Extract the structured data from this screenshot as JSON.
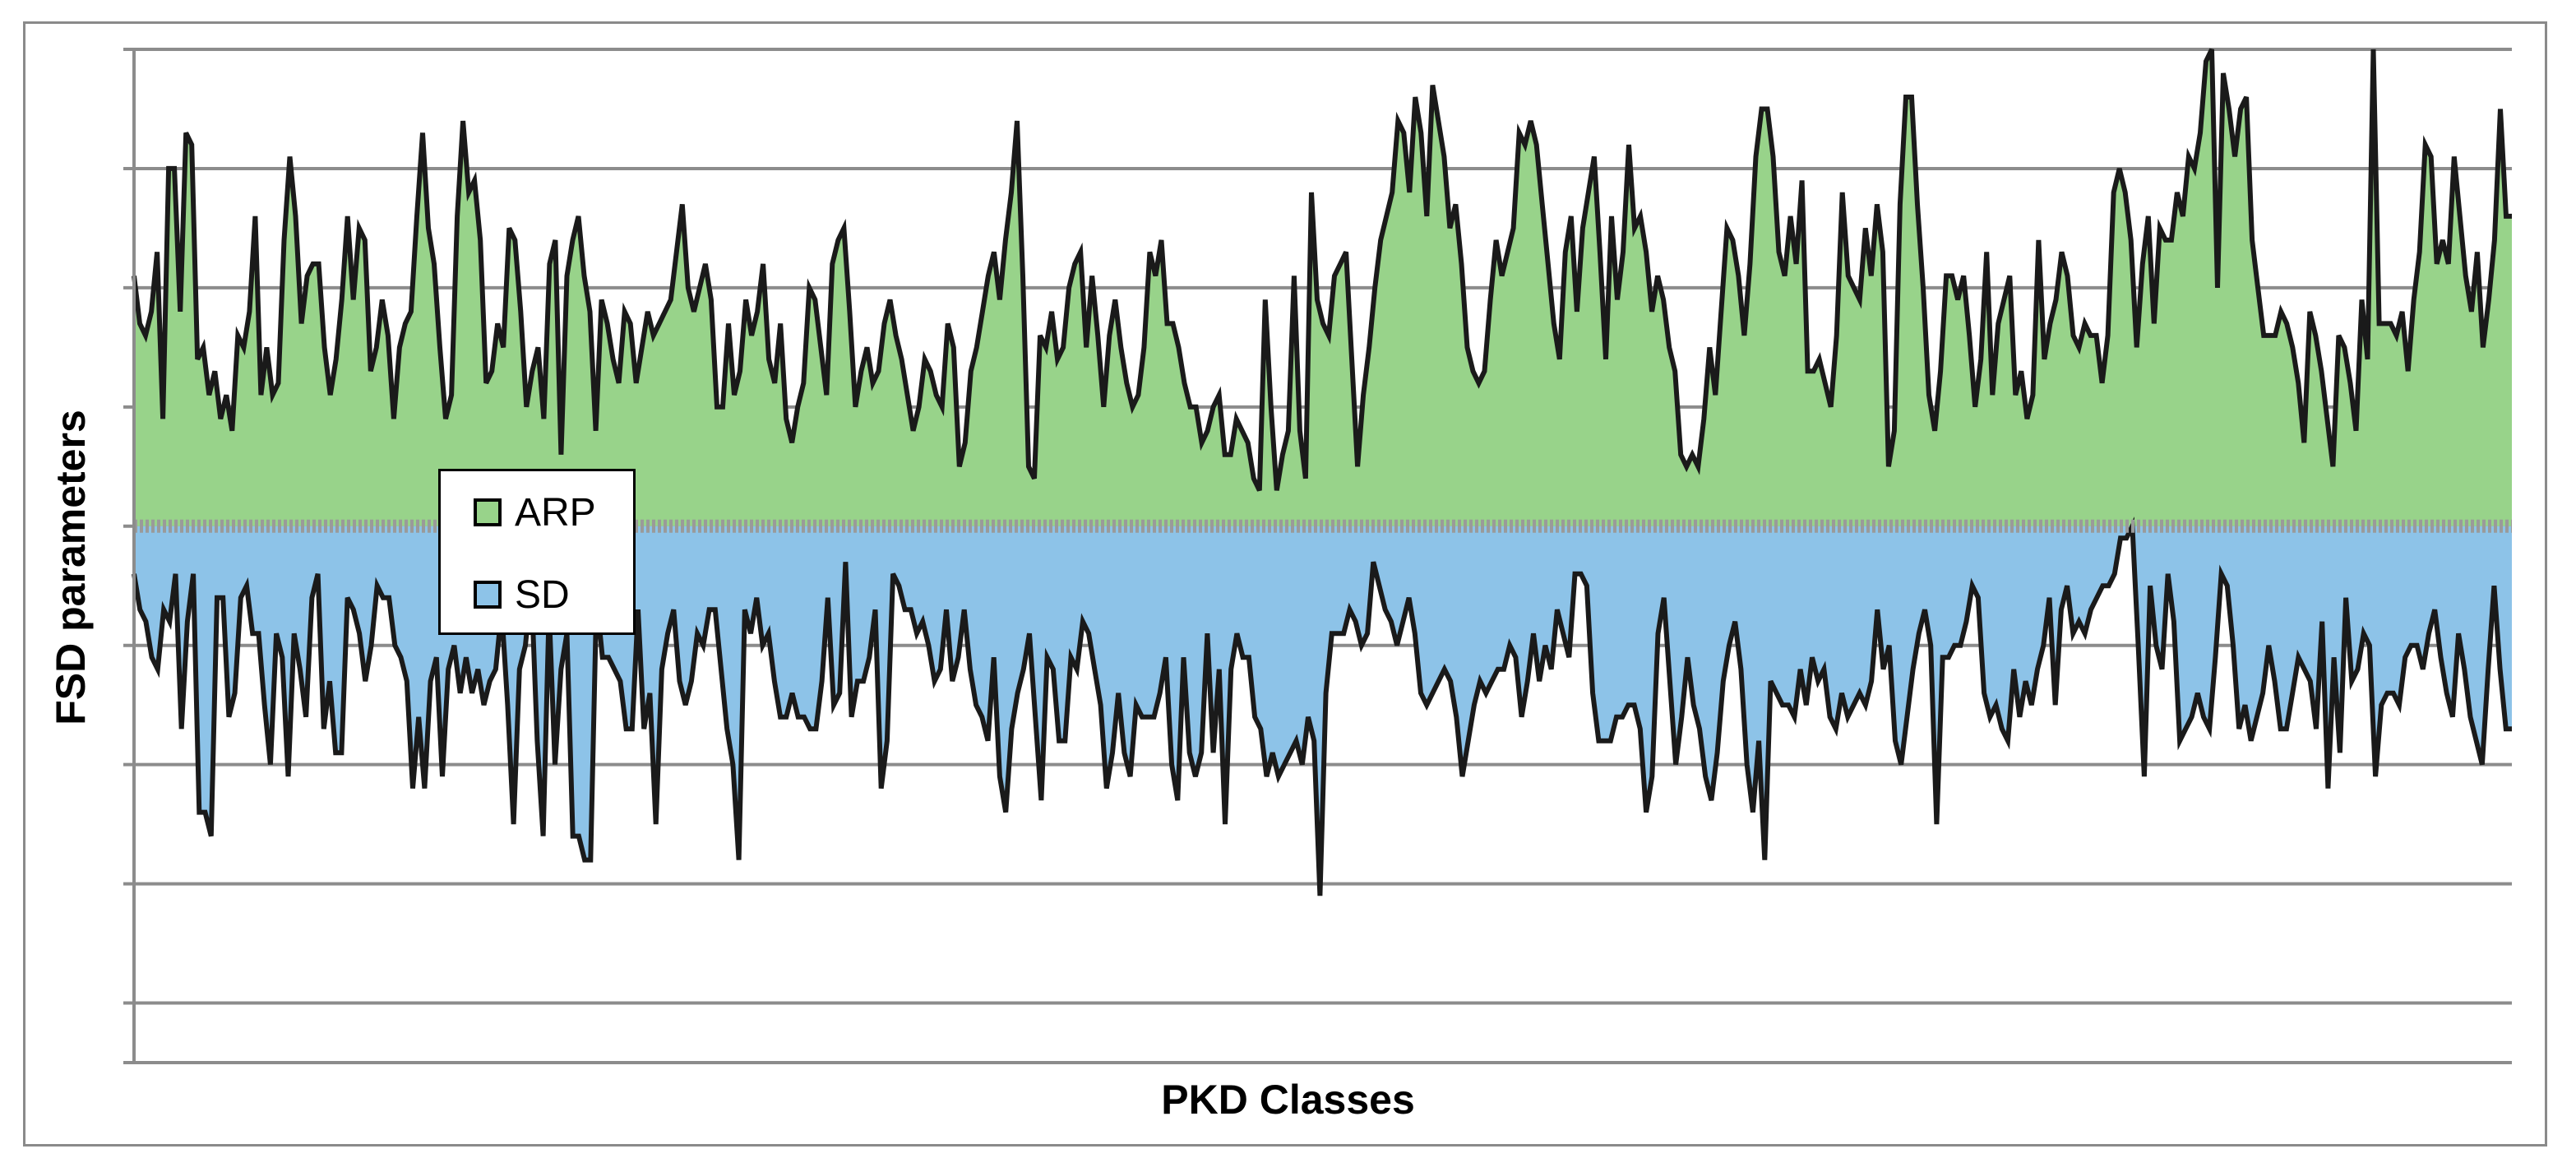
{
  "chart_data": {
    "type": "area",
    "xlabel": "PKD Classes",
    "ylabel": "FSD parameters",
    "x_tick_labels": [],
    "y_tick_labels": [],
    "legend": {
      "position": "left-center",
      "entries": [
        "ARP",
        "SD"
      ]
    },
    "grid": true,
    "ylim": [
      -4.5,
      4
    ],
    "baseline": 0,
    "series": [
      {
        "name": "ARP",
        "color": "#98d38a",
        "values": [
          2.1,
          1.7,
          1.6,
          1.8,
          2.3,
          0.9,
          3.0,
          3.0,
          1.8,
          3.3,
          3.2,
          1.4,
          1.5,
          1.1,
          1.3,
          0.9,
          1.1,
          0.8,
          1.6,
          1.5,
          1.8,
          2.6,
          1.1,
          1.5,
          1.1,
          1.2,
          2.4,
          3.1,
          2.6,
          1.7,
          2.1,
          2.2,
          2.2,
          1.5,
          1.1,
          1.4,
          1.9,
          2.6,
          1.9,
          2.5,
          2.4,
          1.3,
          1.5,
          1.9,
          1.6,
          0.9,
          1.5,
          1.7,
          1.8,
          2.6,
          3.3,
          2.5,
          2.2,
          1.5,
          0.9,
          1.1,
          2.6,
          3.4,
          2.8,
          2.9,
          2.4,
          1.2,
          1.3,
          1.7,
          1.5,
          2.5,
          2.4,
          1.8,
          1.0,
          1.3,
          1.5,
          0.9,
          2.2,
          2.4,
          0.6,
          2.1,
          2.4,
          2.6,
          2.1,
          1.8,
          0.8,
          1.9,
          1.7,
          1.4,
          1.2,
          1.8,
          1.7,
          1.2,
          1.5,
          1.8,
          1.6,
          1.7,
          1.8,
          1.9,
          2.3,
          2.7,
          2.0,
          1.8,
          2.0,
          2.2,
          1.9,
          1.0,
          1.0,
          1.7,
          1.1,
          1.3,
          1.9,
          1.6,
          1.8,
          2.2,
          1.4,
          1.2,
          1.7,
          0.9,
          0.7,
          1.0,
          1.2,
          2.0,
          1.9,
          1.5,
          1.1,
          2.2,
          2.4,
          2.5,
          1.8,
          1.0,
          1.3,
          1.5,
          1.2,
          1.3,
          1.7,
          1.9,
          1.6,
          1.4,
          1.1,
          0.8,
          1.0,
          1.4,
          1.3,
          1.1,
          1.0,
          1.7,
          1.5,
          0.5,
          0.7,
          1.3,
          1.5,
          1.8,
          2.1,
          2.3,
          1.9,
          2.4,
          2.8,
          3.4,
          2.1,
          0.5,
          0.4,
          1.6,
          1.5,
          1.8,
          1.4,
          1.5,
          2.0,
          2.2,
          2.3,
          1.5,
          2.1,
          1.6,
          1.0,
          1.6,
          1.9,
          1.5,
          1.2,
          1.0,
          1.1,
          1.5,
          2.3,
          2.1,
          2.4,
          1.7,
          1.7,
          1.5,
          1.2,
          1.0,
          1.0,
          0.7,
          0.8,
          1.0,
          1.1,
          0.6,
          0.6,
          0.9,
          0.8,
          0.7,
          0.4,
          0.3,
          1.9,
          1.0,
          0.3,
          0.6,
          0.8,
          2.1,
          0.8,
          0.4,
          2.8,
          1.9,
          1.7,
          1.6,
          2.1,
          2.2,
          2.3,
          1.4,
          0.5,
          1.1,
          1.5,
          2.0,
          2.4,
          2.6,
          2.8,
          3.4,
          3.3,
          2.8,
          3.6,
          3.3,
          2.6,
          3.7,
          3.4,
          3.1,
          2.5,
          2.7,
          2.2,
          1.5,
          1.3,
          1.2,
          1.3,
          1.9,
          2.4,
          2.1,
          2.3,
          2.5,
          3.3,
          3.2,
          3.4,
          3.2,
          2.7,
          2.2,
          1.7,
          1.4,
          2.3,
          2.6,
          1.8,
          2.5,
          2.8,
          3.1,
          2.3,
          1.4,
          2.6,
          1.9,
          2.3,
          3.2,
          2.5,
          2.6,
          2.3,
          1.8,
          2.1,
          1.9,
          1.5,
          1.3,
          0.6,
          0.5,
          0.6,
          0.5,
          0.9,
          1.5,
          1.1,
          1.8,
          2.5,
          2.4,
          2.1,
          1.6,
          2.2,
          3.1,
          3.5,
          3.5,
          3.1,
          2.3,
          2.1,
          2.6,
          2.2,
          2.9,
          1.3,
          1.3,
          1.4,
          1.2,
          1.0,
          1.6,
          2.8,
          2.1,
          2.0,
          1.9,
          2.5,
          2.1,
          2.7,
          2.3,
          0.5,
          0.8,
          2.7,
          3.6,
          3.6,
          2.7,
          2.0,
          1.1,
          0.8,
          1.3,
          2.1,
          2.1,
          1.9,
          2.1,
          1.6,
          1.0,
          1.4,
          2.3,
          1.1,
          1.7,
          1.9,
          2.1,
          1.1,
          1.3,
          0.9,
          1.1,
          2.4,
          1.4,
          1.7,
          1.9,
          2.3,
          2.1,
          1.6,
          1.5,
          1.7,
          1.6,
          1.6,
          1.2,
          1.6,
          2.8,
          3.0,
          2.8,
          2.4,
          1.5,
          2.2,
          2.6,
          1.7,
          2.5,
          2.4,
          2.4,
          2.8,
          2.6,
          3.1,
          3.0,
          3.3,
          3.9,
          4.0,
          2.0,
          3.8,
          3.5,
          3.1,
          3.5,
          3.6,
          2.4,
          2.0,
          1.6,
          1.6,
          1.6,
          1.8,
          1.7,
          1.5,
          1.2,
          0.7,
          1.8,
          1.6,
          1.3,
          0.9,
          0.5,
          1.6,
          1.5,
          1.2,
          0.8,
          1.9,
          1.4,
          4.0,
          1.7,
          1.7,
          1.7,
          1.6,
          1.8,
          1.3,
          1.9,
          2.3,
          3.2,
          3.1,
          2.2,
          2.4,
          2.2,
          3.1,
          2.6,
          2.1,
          1.8,
          2.3,
          1.5,
          1.9,
          2.4,
          3.5,
          2.6,
          2.6
        ]
      },
      {
        "name": "SD",
        "color": "#8dc3e8",
        "values": [
          -0.4,
          -0.7,
          -0.8,
          -1.1,
          -1.2,
          -0.7,
          -0.8,
          -0.4,
          -1.7,
          -0.8,
          -0.4,
          -2.4,
          -2.4,
          -2.6,
          -0.6,
          -0.6,
          -1.6,
          -1.4,
          -0.6,
          -0.5,
          -0.9,
          -0.9,
          -1.5,
          -2.0,
          -0.9,
          -1.1,
          -2.1,
          -0.9,
          -1.2,
          -1.6,
          -0.6,
          -0.4,
          -1.7,
          -1.3,
          -1.9,
          -1.9,
          -0.6,
          -0.7,
          -0.9,
          -1.3,
          -1.0,
          -0.5,
          -0.6,
          -0.6,
          -1.0,
          -1.1,
          -1.3,
          -2.2,
          -1.6,
          -2.2,
          -1.3,
          -1.1,
          -2.1,
          -1.2,
          -1.0,
          -1.4,
          -1.1,
          -1.4,
          -1.2,
          -1.5,
          -1.3,
          -1.2,
          -0.7,
          -1.5,
          -2.5,
          -1.2,
          -1.0,
          -0.5,
          -1.8,
          -2.6,
          -0.7,
          -2.0,
          -1.2,
          -0.9,
          -2.6,
          -2.6,
          -2.8,
          -2.8,
          -0.6,
          -1.1,
          -1.1,
          -1.2,
          -1.3,
          -1.7,
          -1.7,
          -0.7,
          -1.7,
          -1.4,
          -2.5,
          -1.2,
          -0.9,
          -0.7,
          -1.3,
          -1.5,
          -1.3,
          -0.9,
          -1.0,
          -0.7,
          -0.7,
          -1.2,
          -1.7,
          -2.0,
          -2.8,
          -0.7,
          -0.9,
          -0.6,
          -1.0,
          -0.9,
          -1.3,
          -1.6,
          -1.6,
          -1.4,
          -1.6,
          -1.6,
          -1.7,
          -1.7,
          -1.3,
          -0.6,
          -1.5,
          -1.4,
          -0.3,
          -1.6,
          -1.3,
          -1.3,
          -1.1,
          -0.7,
          -2.2,
          -1.8,
          -0.4,
          -0.5,
          -0.7,
          -0.7,
          -0.9,
          -0.8,
          -1.0,
          -1.3,
          -1.2,
          -0.7,
          -1.3,
          -1.1,
          -0.7,
          -1.2,
          -1.5,
          -1.6,
          -1.8,
          -1.1,
          -2.1,
          -2.4,
          -1.7,
          -1.4,
          -1.2,
          -0.9,
          -1.6,
          -2.3,
          -1.1,
          -1.2,
          -1.8,
          -1.8,
          -1.1,
          -1.2,
          -0.8,
          -0.9,
          -1.2,
          -1.5,
          -2.2,
          -1.9,
          -1.4,
          -1.9,
          -2.1,
          -1.5,
          -1.6,
          -1.6,
          -1.6,
          -1.4,
          -1.1,
          -2.0,
          -2.3,
          -1.1,
          -1.9,
          -2.1,
          -1.9,
          -0.9,
          -1.9,
          -1.2,
          -2.5,
          -1.2,
          -0.9,
          -1.1,
          -1.1,
          -1.6,
          -1.7,
          -2.1,
          -1.9,
          -2.1,
          -2.0,
          -1.9,
          -1.8,
          -2.0,
          -1.6,
          -1.8,
          -3.1,
          -1.4,
          -0.9,
          -0.9,
          -0.9,
          -0.7,
          -0.8,
          -1.0,
          -0.9,
          -0.3,
          -0.5,
          -0.7,
          -0.8,
          -1.0,
          -0.8,
          -0.6,
          -0.9,
          -1.4,
          -1.5,
          -1.4,
          -1.3,
          -1.2,
          -1.3,
          -1.6,
          -2.1,
          -1.8,
          -1.5,
          -1.3,
          -1.4,
          -1.3,
          -1.2,
          -1.2,
          -1.0,
          -1.1,
          -1.6,
          -1.3,
          -0.9,
          -1.3,
          -1.0,
          -1.2,
          -0.7,
          -0.9,
          -1.1,
          -0.4,
          -0.4,
          -0.5,
          -1.4,
          -1.8,
          -1.8,
          -1.8,
          -1.6,
          -1.6,
          -1.5,
          -1.5,
          -1.7,
          -2.4,
          -2.1,
          -0.9,
          -0.6,
          -1.3,
          -2.0,
          -1.6,
          -1.1,
          -1.5,
          -1.7,
          -2.1,
          -2.3,
          -1.9,
          -1.3,
          -1.0,
          -0.8,
          -1.2,
          -2.0,
          -2.4,
          -1.8,
          -2.8,
          -1.3,
          -1.4,
          -1.5,
          -1.5,
          -1.6,
          -1.2,
          -1.5,
          -1.1,
          -1.3,
          -1.2,
          -1.6,
          -1.7,
          -1.4,
          -1.6,
          -1.5,
          -1.4,
          -1.5,
          -1.3,
          -0.7,
          -1.2,
          -1.0,
          -1.8,
          -2.0,
          -1.6,
          -1.2,
          -0.9,
          -0.7,
          -1.0,
          -2.5,
          -1.1,
          -1.1,
          -1.0,
          -1.0,
          -0.8,
          -0.5,
          -0.6,
          -1.4,
          -1.6,
          -1.5,
          -1.7,
          -1.8,
          -1.2,
          -1.6,
          -1.3,
          -1.5,
          -1.2,
          -1.0,
          -0.6,
          -1.5,
          -0.7,
          -0.5,
          -0.9,
          -0.8,
          -0.9,
          -0.7,
          -0.6,
          -0.5,
          -0.5,
          -0.4,
          -0.1,
          -0.1,
          -0.0,
          -1.0,
          -2.1,
          -0.5,
          -1.0,
          -1.2,
          -0.4,
          -0.8,
          -1.8,
          -1.7,
          -1.6,
          -1.4,
          -1.6,
          -1.7,
          -1.1,
          -0.4,
          -0.5,
          -1.0,
          -1.7,
          -1.5,
          -1.8,
          -1.6,
          -1.4,
          -1.0,
          -1.3,
          -1.7,
          -1.7,
          -1.4,
          -1.1,
          -1.2,
          -1.3,
          -1.7,
          -0.8,
          -2.2,
          -1.1,
          -1.9,
          -0.6,
          -1.3,
          -1.2,
          -0.9,
          -1.0,
          -2.1,
          -1.5,
          -1.4,
          -1.4,
          -1.5,
          -1.1,
          -1.0,
          -1.0,
          -1.2,
          -0.9,
          -0.7,
          -1.1,
          -1.4,
          -1.6,
          -0.9,
          -1.2,
          -1.6,
          -1.8,
          -2.0,
          -1.2,
          -0.5,
          -1.2,
          -1.7,
          -1.7
        ]
      }
    ]
  }
}
